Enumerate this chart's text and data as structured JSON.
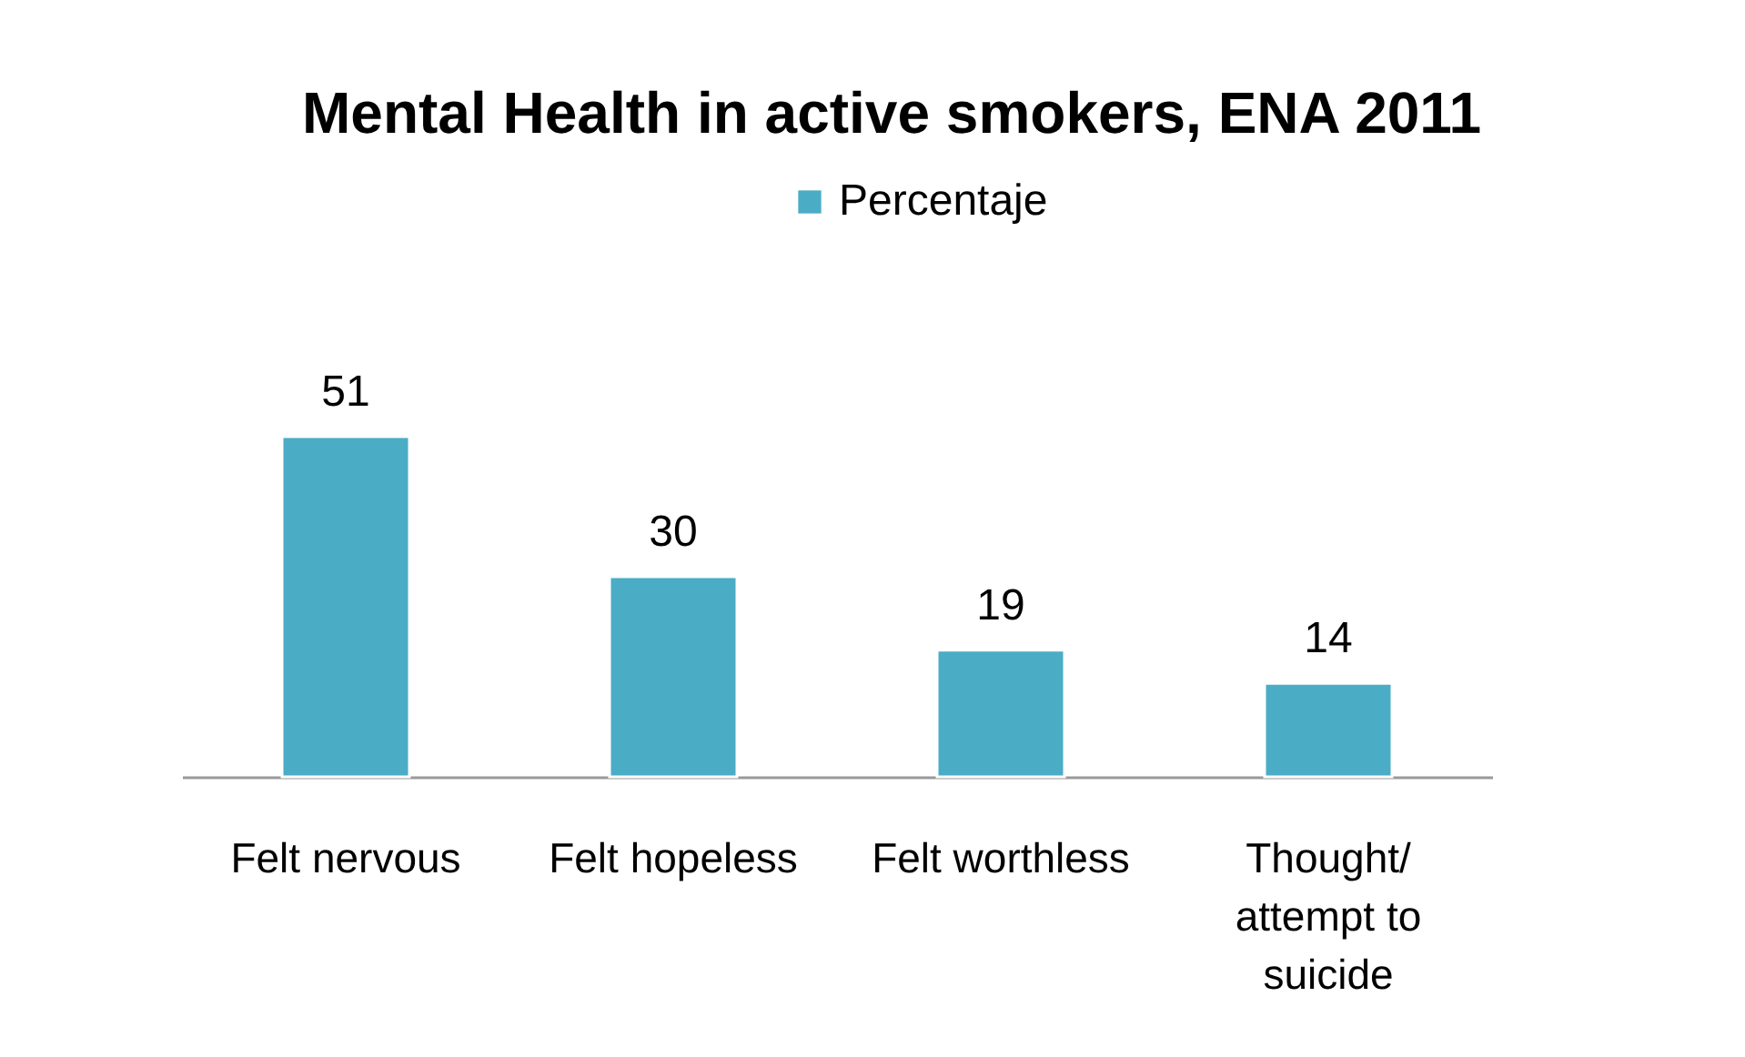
{
  "chart_data": {
    "type": "bar",
    "title": "Mental Health in active smokers, ENA 2011",
    "categories": [
      "Felt nervous",
      "Felt hopeless",
      "Felt worthless",
      "Thought/ attempt to suicide"
    ],
    "series": [
      {
        "name": "Percentaje",
        "color": "#4bacc6",
        "values": [
          51,
          30,
          19,
          14
        ]
      }
    ],
    "data_labels": true,
    "legend": "top",
    "tick_labels": "x"
  }
}
